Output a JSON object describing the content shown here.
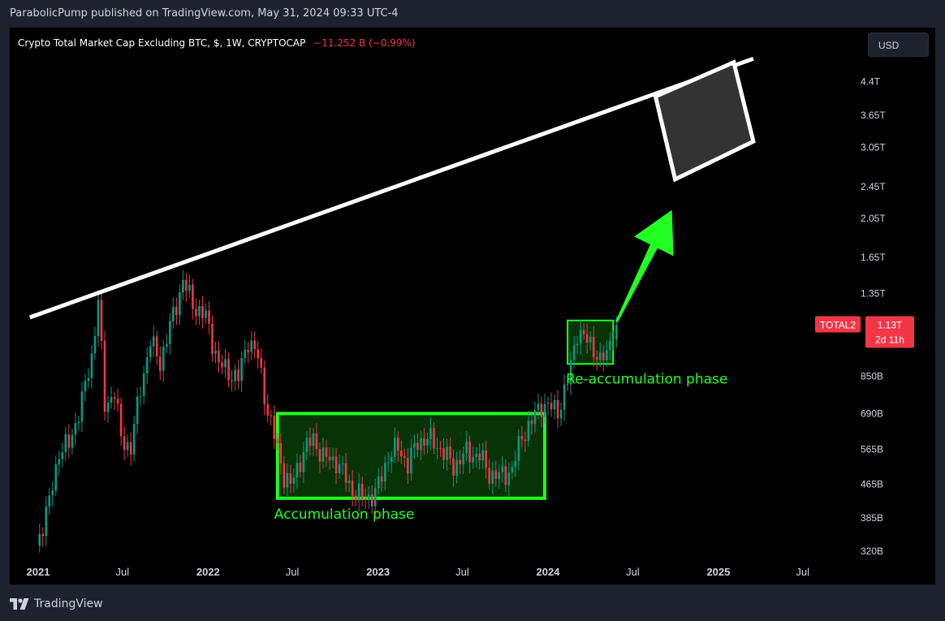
{
  "header": {
    "publisher_line": "ParabolicPump published on TradingView.com, May 31, 2024 09:33 UTC-4"
  },
  "legend": {
    "symbol_text": "Crypto Total Market Cap Excluding BTC, $, 1W, CRYPTOCAP",
    "change_text": "−11.252 B (−0.99%)",
    "change_color": "#f23645"
  },
  "currency_button": {
    "label": "USD"
  },
  "price_tag": {
    "symbol": "TOTAL2",
    "price": "1.13T",
    "countdown": "2d 11h",
    "color": "#f23645"
  },
  "annotations": {
    "accumulation": "Accumulation phase",
    "reaccumulation": "Re-accumulation phase",
    "box_color": "#22ff22",
    "trendline_color": "#ffffff",
    "target_box_color": "#333333"
  },
  "brand": {
    "name": "TradingView",
    "icon": "tradingview-logo-icon"
  },
  "chart_data": {
    "type": "candlestick",
    "title": "Crypto Total Market Cap Excluding BTC, $, 1W, CRYPTOCAP",
    "y_scale": "log",
    "ylim": [
      310,
      5200
    ],
    "y_unit": "B",
    "y_ticks": [
      {
        "v": 4400,
        "label": "4.4T"
      },
      {
        "v": 3650,
        "label": "3.65T"
      },
      {
        "v": 3050,
        "label": "3.05T"
      },
      {
        "v": 2450,
        "label": "2.45T"
      },
      {
        "v": 2050,
        "label": "2.05T"
      },
      {
        "v": 1650,
        "label": "1.65T"
      },
      {
        "v": 1350,
        "label": "1.35T"
      },
      {
        "v": 850,
        "label": "850B"
      },
      {
        "v": 690,
        "label": "690B"
      },
      {
        "v": 565,
        "label": "565B"
      },
      {
        "v": 465,
        "label": "465B"
      },
      {
        "v": 385,
        "label": "385B"
      },
      {
        "v": 320,
        "label": "320B"
      }
    ],
    "x_ticks": [
      {
        "date": "2021-01-01",
        "label": "2021",
        "bold": true
      },
      {
        "date": "2021-07-01",
        "label": "Jul",
        "bold": false
      },
      {
        "date": "2022-01-01",
        "label": "2022",
        "bold": true
      },
      {
        "date": "2022-07-01",
        "label": "Jul",
        "bold": false
      },
      {
        "date": "2023-01-01",
        "label": "2023",
        "bold": true
      },
      {
        "date": "2023-07-01",
        "label": "Jul",
        "bold": false
      },
      {
        "date": "2024-01-01",
        "label": "2024",
        "bold": true
      },
      {
        "date": "2024-07-01",
        "label": "Jul",
        "bold": false
      },
      {
        "date": "2025-01-01",
        "label": "2025",
        "bold": true
      },
      {
        "date": "2025-07-01",
        "label": "Jul",
        "bold": false
      }
    ],
    "up_color": "#089981",
    "down_color": "#f23645",
    "close_anchors": [
      [
        "2020-12-28",
        330
      ],
      [
        "2021-01-25",
        420
      ],
      [
        "2021-02-15",
        560
      ],
      [
        "2021-03-08",
        580
      ],
      [
        "2021-04-05",
        740
      ],
      [
        "2021-04-26",
        950
      ],
      [
        "2021-05-10",
        1300
      ],
      [
        "2021-05-24",
        720
      ],
      [
        "2021-06-14",
        780
      ],
      [
        "2021-06-28",
        600
      ],
      [
        "2021-07-19",
        570
      ],
      [
        "2021-08-09",
        800
      ],
      [
        "2021-08-30",
        1030
      ],
      [
        "2021-09-20",
        920
      ],
      [
        "2021-10-11",
        1120
      ],
      [
        "2021-11-08",
        1450
      ],
      [
        "2021-11-29",
        1270
      ],
      [
        "2021-12-27",
        1180
      ],
      [
        "2022-01-24",
        910
      ],
      [
        "2022-02-14",
        870
      ],
      [
        "2022-03-07",
        840
      ],
      [
        "2022-03-28",
        1050
      ],
      [
        "2022-04-18",
        940
      ],
      [
        "2022-05-09",
        700
      ],
      [
        "2022-06-13",
        490
      ],
      [
        "2022-06-27",
        460
      ],
      [
        "2022-07-25",
        560
      ],
      [
        "2022-08-15",
        600
      ],
      [
        "2022-09-05",
        540
      ],
      [
        "2022-10-03",
        530
      ],
      [
        "2022-11-07",
        450
      ],
      [
        "2022-11-28",
        430
      ],
      [
        "2022-12-26",
        440
      ],
      [
        "2023-01-23",
        545
      ],
      [
        "2023-02-13",
        570
      ],
      [
        "2023-03-06",
        520
      ],
      [
        "2023-03-27",
        590
      ],
      [
        "2023-04-17",
        600
      ],
      [
        "2023-05-08",
        580
      ],
      [
        "2023-06-12",
        515
      ],
      [
        "2023-07-10",
        555
      ],
      [
        "2023-08-07",
        545
      ],
      [
        "2023-08-28",
        495
      ],
      [
        "2023-09-18",
        485
      ],
      [
        "2023-10-16",
        505
      ],
      [
        "2023-11-06",
        610
      ],
      [
        "2023-11-27",
        660
      ],
      [
        "2023-12-18",
        730
      ],
      [
        "2024-01-22",
        700
      ],
      [
        "2024-02-12",
        820
      ],
      [
        "2024-03-04",
        1100
      ],
      [
        "2024-03-18",
        1050
      ],
      [
        "2024-04-08",
        1000
      ],
      [
        "2024-04-22",
        920
      ],
      [
        "2024-05-06",
        960
      ],
      [
        "2024-05-20",
        1120
      ],
      [
        "2024-05-27",
        1130
      ]
    ],
    "overlays": {
      "trendline": [
        [
          "2020-12-14",
          1180
        ],
        [
          "2025-03-17",
          5000
        ]
      ],
      "accumulation_box": {
        "x": [
          "2022-05-30",
          "2023-12-25"
        ],
        "y": [
          430,
          690
        ]
      },
      "reaccumulation_box": {
        "x": [
          "2024-02-12",
          "2024-05-20"
        ],
        "y": [
          910,
          1160
        ]
      },
      "target_zone": [
        [
          "2024-08-19",
          4050
        ],
        [
          "2025-02-03",
          4900
        ],
        [
          "2025-03-17",
          3150
        ],
        [
          "2024-09-30",
          2550
        ]
      ],
      "arrow": {
        "from": [
          "2024-05-27",
          1150
        ],
        "to": [
          "2024-09-23",
          2150
        ]
      }
    },
    "last_price": 1130,
    "grid": false,
    "legend_position": "top-left"
  }
}
